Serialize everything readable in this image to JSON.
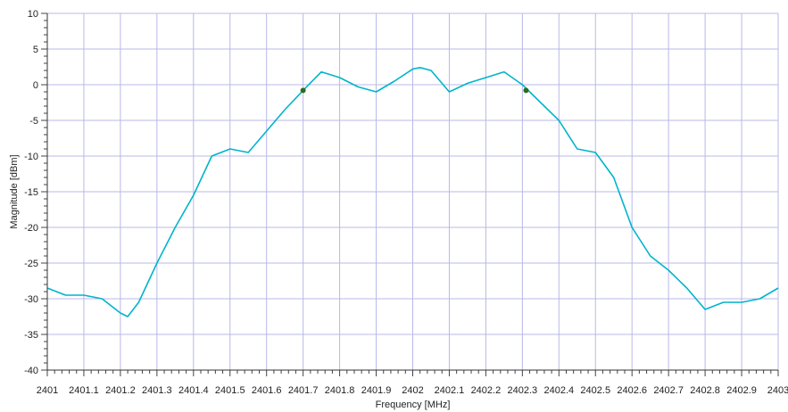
{
  "chart_data": {
    "type": "line",
    "xlabel": "Frequency [MHz]",
    "ylabel": "Magnitude [dBm]",
    "xlim": [
      2401,
      2403
    ],
    "ylim": [
      -40,
      10
    ],
    "x_ticks": [
      "2401",
      "2401.1",
      "2401.2",
      "2401.3",
      "2401.4",
      "2401.5",
      "2401.6",
      "2401.7",
      "2401.8",
      "2401.9",
      "2402",
      "2402.1",
      "2402.2",
      "2402.3",
      "2402.4",
      "2402.5",
      "2402.6",
      "2402.7",
      "2402.8",
      "2402.9",
      "2403"
    ],
    "y_ticks": [
      "10",
      "5",
      "0",
      "-5",
      "-10",
      "-15",
      "-20",
      "-25",
      "-30",
      "-35",
      "-40"
    ],
    "grid": true,
    "line_color": "#00b4cc",
    "grid_color": "#b8b8e8",
    "marker_color": "#2e6b1f",
    "series": [
      {
        "x": [
          2401.0,
          2401.05,
          2401.1,
          2401.15,
          2401.2,
          2401.22,
          2401.25,
          2401.3,
          2401.35,
          2401.4,
          2401.45,
          2401.5,
          2401.55,
          2401.6,
          2401.65,
          2401.7,
          2401.75,
          2401.8,
          2401.85,
          2401.9,
          2401.95,
          2402.0,
          2402.02,
          2402.05,
          2402.1,
          2402.15,
          2402.2,
          2402.25,
          2402.3,
          2402.35,
          2402.4,
          2402.45,
          2402.5,
          2402.55,
          2402.6,
          2402.65,
          2402.7,
          2402.75,
          2402.8,
          2402.85,
          2402.9,
          2402.95,
          2403.0
        ],
        "y": [
          -28.5,
          -29.5,
          -29.5,
          -30.0,
          -32.0,
          -32.5,
          -30.5,
          -25.0,
          -20.0,
          -15.5,
          -10.0,
          -9.0,
          -9.5,
          -6.5,
          -3.5,
          -0.8,
          1.8,
          1.0,
          -0.3,
          -1.0,
          0.5,
          2.2,
          2.4,
          2.0,
          -1.0,
          0.2,
          1.0,
          1.8,
          0.0,
          -2.5,
          -5.0,
          -9.0,
          -9.5,
          -13.0,
          -20.0,
          -24.0,
          -26.0,
          -28.5,
          -31.5,
          -30.5,
          -30.5,
          -30.0,
          -28.5
        ]
      }
    ],
    "markers": [
      {
        "x": 2401.7,
        "y": -0.8
      },
      {
        "x": 2402.31,
        "y": -0.8
      }
    ]
  }
}
